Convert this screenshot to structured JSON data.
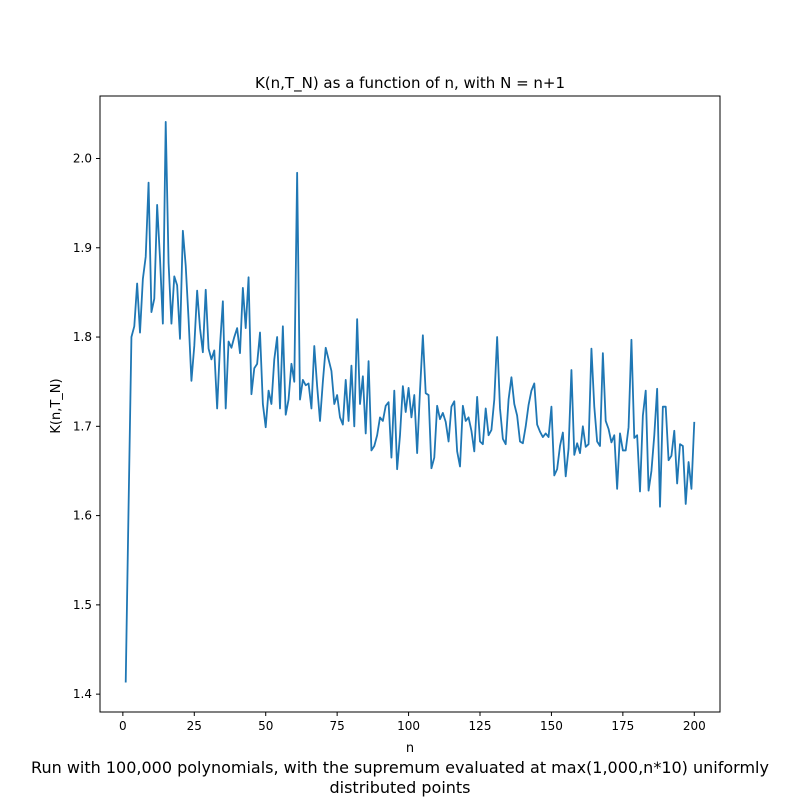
{
  "chart_data": {
    "type": "line",
    "title": "K(n,T_N) as a function of n, with N = n+1",
    "xlabel": "n",
    "ylabel": "K(n,T_N)",
    "xlim": [
      -8,
      209
    ],
    "ylim": [
      1.38,
      2.07
    ],
    "xticks": [
      0,
      25,
      50,
      75,
      100,
      125,
      150,
      175,
      200
    ],
    "yticks": [
      1.4,
      1.5,
      1.6,
      1.7,
      1.8,
      1.9,
      2.0
    ],
    "grid": false,
    "line_color": "#1f77b4",
    "series": [
      {
        "x_start": 1,
        "values": [
          1.413,
          1.61,
          1.8,
          1.812,
          1.86,
          1.805,
          1.865,
          1.89,
          1.973,
          1.828,
          1.843,
          1.948,
          1.888,
          1.815,
          2.041,
          1.883,
          1.815,
          1.868,
          1.858,
          1.798,
          1.919,
          1.88,
          1.82,
          1.751,
          1.79,
          1.852,
          1.81,
          1.783,
          1.853,
          1.787,
          1.775,
          1.785,
          1.72,
          1.79,
          1.84,
          1.72,
          1.795,
          1.788,
          1.8,
          1.81,
          1.782,
          1.855,
          1.81,
          1.867,
          1.736,
          1.765,
          1.77,
          1.805,
          1.725,
          1.699,
          1.74,
          1.725,
          1.775,
          1.8,
          1.72,
          1.812,
          1.713,
          1.73,
          1.77,
          1.75,
          1.984,
          1.73,
          1.752,
          1.746,
          1.748,
          1.72,
          1.79,
          1.745,
          1.706,
          1.75,
          1.788,
          1.775,
          1.762,
          1.725,
          1.735,
          1.71,
          1.702,
          1.752,
          1.706,
          1.768,
          1.7,
          1.82,
          1.725,
          1.756,
          1.692,
          1.773,
          1.673,
          1.678,
          1.69,
          1.71,
          1.706,
          1.723,
          1.727,
          1.665,
          1.74,
          1.652,
          1.69,
          1.745,
          1.716,
          1.743,
          1.71,
          1.735,
          1.67,
          1.74,
          1.802,
          1.737,
          1.735,
          1.653,
          1.665,
          1.723,
          1.708,
          1.715,
          1.705,
          1.683,
          1.722,
          1.728,
          1.672,
          1.655,
          1.723,
          1.706,
          1.71,
          1.695,
          1.672,
          1.733,
          1.683,
          1.68,
          1.72,
          1.69,
          1.696,
          1.73,
          1.8,
          1.72,
          1.686,
          1.68,
          1.73,
          1.755,
          1.725,
          1.712,
          1.683,
          1.681,
          1.7,
          1.724,
          1.74,
          1.748,
          1.702,
          1.694,
          1.688,
          1.692,
          1.688,
          1.722,
          1.645,
          1.652,
          1.678,
          1.693,
          1.644,
          1.675,
          1.763,
          1.668,
          1.681,
          1.67,
          1.7,
          1.677,
          1.68,
          1.787,
          1.722,
          1.683,
          1.678,
          1.782,
          1.706,
          1.697,
          1.682,
          1.69,
          1.63,
          1.692,
          1.673,
          1.673,
          1.699,
          1.797,
          1.687,
          1.69,
          1.627,
          1.712,
          1.74,
          1.628,
          1.65,
          1.69,
          1.742,
          1.61,
          1.722,
          1.722,
          1.662,
          1.667,
          1.695,
          1.636,
          1.68,
          1.678,
          1.613,
          1.66,
          1.63,
          1.705
        ]
      }
    ]
  },
  "caption": {
    "line1": "Run with 100,000 polynomials, with the supremum evaluated at max(1,000,n*10) uniformly",
    "line2": "distributed points"
  }
}
